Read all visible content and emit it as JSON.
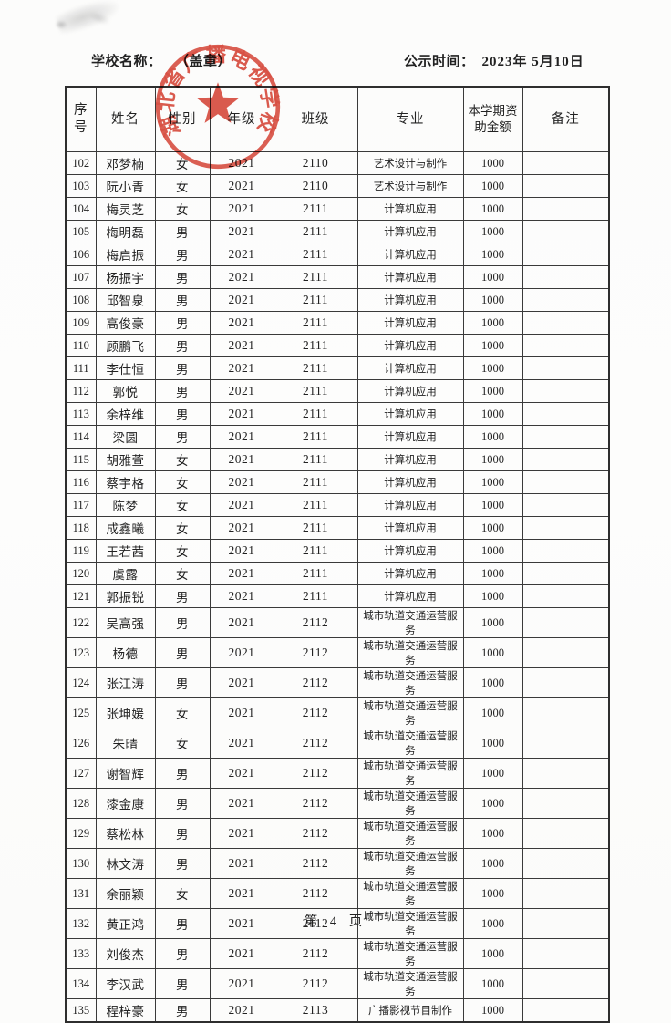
{
  "header": {
    "school_label": "学校名称：",
    "seal_note": "（盖章）",
    "publish_label": "公示时间：",
    "publish_date": "2023年 5月10日"
  },
  "stamp": {
    "text": "湖北省广播电视学校",
    "color": "#d5392b"
  },
  "table": {
    "columns": [
      "序号",
      "姓名",
      "性别",
      "年级",
      "班级",
      "专业",
      "本学期资助金额",
      "备注"
    ],
    "rows": [
      [
        "102",
        "邓梦楠",
        "女",
        "2021",
        "2110",
        "艺术设计与制作",
        "1000",
        ""
      ],
      [
        "103",
        "阮小青",
        "女",
        "2021",
        "2110",
        "艺术设计与制作",
        "1000",
        ""
      ],
      [
        "104",
        "梅灵芝",
        "女",
        "2021",
        "2111",
        "计算机应用",
        "1000",
        ""
      ],
      [
        "105",
        "梅明磊",
        "男",
        "2021",
        "2111",
        "计算机应用",
        "1000",
        ""
      ],
      [
        "106",
        "梅启振",
        "男",
        "2021",
        "2111",
        "计算机应用",
        "1000",
        ""
      ],
      [
        "107",
        "杨振宇",
        "男",
        "2021",
        "2111",
        "计算机应用",
        "1000",
        ""
      ],
      [
        "108",
        "邱智泉",
        "男",
        "2021",
        "2111",
        "计算机应用",
        "1000",
        ""
      ],
      [
        "109",
        "高俊豪",
        "男",
        "2021",
        "2111",
        "计算机应用",
        "1000",
        ""
      ],
      [
        "110",
        "顾鹏飞",
        "男",
        "2021",
        "2111",
        "计算机应用",
        "1000",
        ""
      ],
      [
        "111",
        "李仕恒",
        "男",
        "2021",
        "2111",
        "计算机应用",
        "1000",
        ""
      ],
      [
        "112",
        "郭悦",
        "男",
        "2021",
        "2111",
        "计算机应用",
        "1000",
        ""
      ],
      [
        "113",
        "余梓维",
        "男",
        "2021",
        "2111",
        "计算机应用",
        "1000",
        ""
      ],
      [
        "114",
        "梁圆",
        "男",
        "2021",
        "2111",
        "计算机应用",
        "1000",
        ""
      ],
      [
        "115",
        "胡雅萱",
        "女",
        "2021",
        "2111",
        "计算机应用",
        "1000",
        ""
      ],
      [
        "116",
        "蔡宇格",
        "女",
        "2021",
        "2111",
        "计算机应用",
        "1000",
        ""
      ],
      [
        "117",
        "陈梦",
        "女",
        "2021",
        "2111",
        "计算机应用",
        "1000",
        ""
      ],
      [
        "118",
        "成鑫曦",
        "女",
        "2021",
        "2111",
        "计算机应用",
        "1000",
        ""
      ],
      [
        "119",
        "王若茜",
        "女",
        "2021",
        "2111",
        "计算机应用",
        "1000",
        ""
      ],
      [
        "120",
        "虞露",
        "女",
        "2021",
        "2111",
        "计算机应用",
        "1000",
        ""
      ],
      [
        "121",
        "郭振锐",
        "男",
        "2021",
        "2111",
        "计算机应用",
        "1000",
        ""
      ],
      [
        "122",
        "吴高强",
        "男",
        "2021",
        "2112",
        "城市轨道交通运营服务",
        "1000",
        ""
      ],
      [
        "123",
        "杨德",
        "男",
        "2021",
        "2112",
        "城市轨道交通运营服务",
        "1000",
        ""
      ],
      [
        "124",
        "张江涛",
        "男",
        "2021",
        "2112",
        "城市轨道交通运营服务",
        "1000",
        ""
      ],
      [
        "125",
        "张坤媛",
        "女",
        "2021",
        "2112",
        "城市轨道交通运营服务",
        "1000",
        ""
      ],
      [
        "126",
        "朱晴",
        "女",
        "2021",
        "2112",
        "城市轨道交通运营服务",
        "1000",
        ""
      ],
      [
        "127",
        "谢智辉",
        "男",
        "2021",
        "2112",
        "城市轨道交通运营服务",
        "1000",
        ""
      ],
      [
        "128",
        "漆金康",
        "男",
        "2021",
        "2112",
        "城市轨道交通运营服务",
        "1000",
        ""
      ],
      [
        "129",
        "蔡松林",
        "男",
        "2021",
        "2112",
        "城市轨道交通运营服务",
        "1000",
        ""
      ],
      [
        "130",
        "林文涛",
        "男",
        "2021",
        "2112",
        "城市轨道交通运营服务",
        "1000",
        ""
      ],
      [
        "131",
        "余丽颖",
        "女",
        "2021",
        "2112",
        "城市轨道交通运营服务",
        "1000",
        ""
      ],
      [
        "132",
        "黄正鸿",
        "男",
        "2021",
        "2112",
        "城市轨道交通运营服务",
        "1000",
        ""
      ],
      [
        "133",
        "刘俊杰",
        "男",
        "2021",
        "2112",
        "城市轨道交通运营服务",
        "1000",
        ""
      ],
      [
        "134",
        "李汉武",
        "男",
        "2021",
        "2112",
        "城市轨道交通运营服务",
        "1000",
        ""
      ],
      [
        "135",
        "程梓豪",
        "男",
        "2021",
        "2113",
        "广播影视节目制作",
        "1000",
        ""
      ]
    ]
  },
  "footer": {
    "page_number": "第 4 页"
  }
}
